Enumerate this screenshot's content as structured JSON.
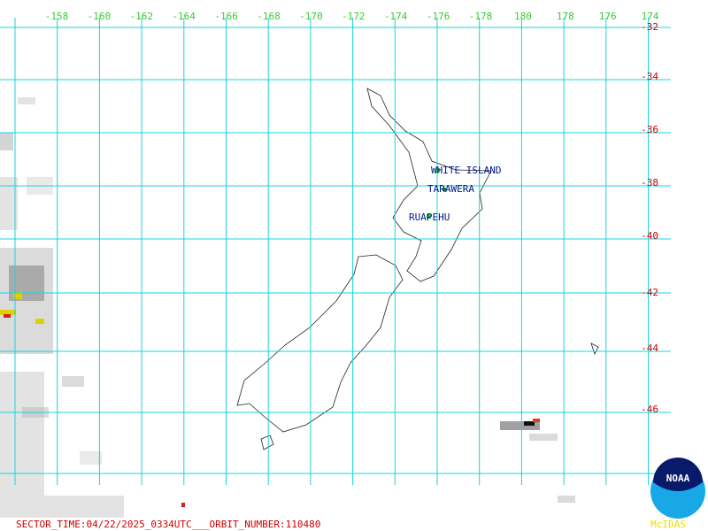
{
  "map": {
    "lon_labels": [
      -158,
      -160,
      -162,
      -164,
      -166,
      -168,
      -170,
      -172,
      -174,
      -176,
      -178,
      180,
      178,
      176,
      174
    ],
    "lat_labels": [
      -32,
      -34,
      -36,
      -38,
      -40,
      -42,
      -44,
      -46
    ],
    "volcanoes": [
      "WHITE ISLAND",
      "TARAWERA",
      "RUAPEHU"
    ],
    "footer": "SECTOR_TIME:04/22/2025_0334UTC___ORBIT_NUMBER:110480",
    "logo": {
      "name": "NOAA",
      "caption": "McIDAS"
    }
  }
}
